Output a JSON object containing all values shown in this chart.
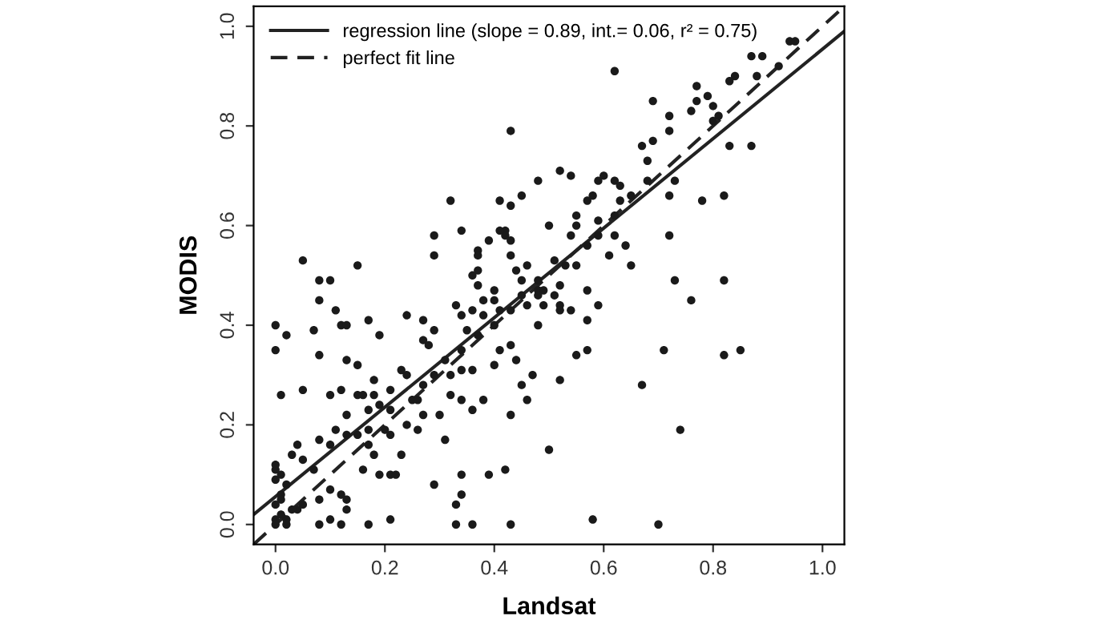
{
  "chart_data": {
    "type": "scatter",
    "xlabel": "Landsat",
    "ylabel": "MODIS",
    "xlim": [
      -0.04,
      1.04
    ],
    "ylim": [
      -0.04,
      1.04
    ],
    "xticks": [
      {
        "value": 0,
        "label": "0.0"
      },
      {
        "value": 0.2,
        "label": "0.2"
      },
      {
        "value": 0.4,
        "label": "0.4"
      },
      {
        "value": 0.6,
        "label": "0.6"
      },
      {
        "value": 0.8,
        "label": "0.8"
      },
      {
        "value": 1,
        "label": "1.0"
      }
    ],
    "yticks": [
      {
        "value": 0,
        "label": "0.0"
      },
      {
        "value": 0.2,
        "label": "0.2"
      },
      {
        "value": 0.4,
        "label": "0.4"
      },
      {
        "value": 0.6,
        "label": "0.6"
      },
      {
        "value": 0.8,
        "label": "0.8"
      },
      {
        "value": 1,
        "label": "1.0"
      }
    ],
    "grid": false,
    "legend": "top left",
    "series": [
      {
        "color": "#1a1a1a",
        "marker": "circle",
        "x": [
          0.94,
          0.95,
          0.87,
          0.89,
          0.92,
          0.84,
          0.88,
          0.83,
          0.77,
          0.77,
          0.79,
          0.8,
          0.81,
          0.76,
          0.8,
          0.83,
          0.87,
          0.72,
          0.72,
          0.69,
          0.67,
          0.62,
          0.69,
          0.62,
          0.6,
          0.52,
          0.68,
          0.68,
          0.73,
          0.72,
          0.82,
          0.78,
          0.82,
          0.72,
          0.65,
          0.57,
          0.59,
          0.58,
          0.57,
          0.55,
          0.63,
          0.62,
          0.65,
          0.63,
          0.54,
          0.59,
          0.62,
          0.61,
          0.64,
          0.59,
          0.55,
          0.55,
          0.54,
          0.51,
          0.51,
          0.52,
          0.57,
          0.59,
          0.5,
          0.53,
          0.49,
          0.48,
          0.41,
          0.43,
          0.42,
          0.42,
          0.43,
          0.39,
          0.43,
          0.44,
          0.46,
          0.45,
          0.4,
          0.37,
          0.37,
          0.38,
          0.43,
          0.48,
          0.45,
          0.32,
          0.29,
          0.34,
          0.41,
          0.29,
          0.05,
          0.15,
          0.08,
          0.1,
          0.37,
          0.37,
          0.36,
          0.08,
          0.11,
          0.0,
          0.02,
          0.0,
          0.07,
          0.12,
          0.13,
          0.17,
          0.19,
          0.24,
          0.08,
          0.13,
          0.15,
          0.05,
          0.01,
          0.1,
          0.12,
          0.15,
          0.16,
          0.18,
          0.18,
          0.19,
          0.21,
          0.23,
          0.24,
          0.13,
          0.17,
          0.21,
          0.25,
          0.26,
          0.27,
          0.24,
          0.21,
          0.2,
          0.17,
          0.15,
          0.13,
          0.11,
          0.1,
          0.08,
          0.04,
          0.03,
          0.05,
          0.07,
          0.0,
          0.0,
          0.01,
          0.0,
          0.0,
          0.02,
          0.04,
          0.05,
          0.08,
          0.1,
          0.12,
          0.13,
          0.13,
          0.1,
          0.08,
          0.12,
          0.17,
          0.21,
          0.16,
          0.19,
          0.21,
          0.22,
          0.23,
          0.17,
          0.18,
          0.26,
          0.29,
          0.31,
          0.27,
          0.29,
          0.31,
          0.32,
          0.34,
          0.34,
          0.36,
          0.38,
          0.36,
          0.34,
          0.32,
          0.3,
          0.27,
          0.29,
          0.27,
          0.28,
          0.33,
          0.34,
          0.36,
          0.38,
          0.4,
          0.35,
          0.37,
          0.4,
          0.41,
          0.43,
          0.45,
          0.46,
          0.43,
          0.41,
          0.4,
          0.44,
          0.45,
          0.46,
          0.43,
          0.47,
          0.48,
          0.48,
          0.34,
          0.34,
          0.33,
          0.33,
          0.36,
          0.39,
          0.42,
          0.43,
          0.5,
          0.73,
          0.76,
          0.71,
          0.82,
          0.85,
          0.67,
          0.74,
          0.58,
          0.7,
          0.52,
          0.55,
          0.57,
          0.57,
          0.54,
          0.52,
          0.52,
          0.49,
          0.48,
          0.01,
          0.02,
          0.0,
          0.01,
          0.03,
          0.02,
          0.0,
          0.01
        ],
        "values": [
          0.97,
          0.97,
          0.94,
          0.94,
          0.92,
          0.9,
          0.9,
          0.89,
          0.88,
          0.85,
          0.86,
          0.84,
          0.82,
          0.83,
          0.81,
          0.76,
          0.76,
          0.82,
          0.79,
          0.77,
          0.76,
          0.91,
          0.85,
          0.69,
          0.7,
          0.71,
          0.73,
          0.69,
          0.69,
          0.66,
          0.66,
          0.65,
          0.49,
          0.58,
          0.52,
          0.56,
          0.61,
          0.66,
          0.65,
          0.62,
          0.65,
          0.62,
          0.66,
          0.68,
          0.7,
          0.69,
          0.58,
          0.54,
          0.56,
          0.58,
          0.6,
          0.52,
          0.58,
          0.53,
          0.46,
          0.48,
          0.47,
          0.44,
          0.6,
          0.52,
          0.44,
          0.49,
          0.65,
          0.64,
          0.59,
          0.58,
          0.57,
          0.57,
          0.54,
          0.51,
          0.52,
          0.46,
          0.47,
          0.48,
          0.55,
          0.45,
          0.79,
          0.69,
          0.66,
          0.65,
          0.58,
          0.59,
          0.59,
          0.54,
          0.53,
          0.52,
          0.49,
          0.49,
          0.54,
          0.51,
          0.5,
          0.45,
          0.43,
          0.4,
          0.38,
          0.35,
          0.39,
          0.4,
          0.4,
          0.41,
          0.38,
          0.42,
          0.34,
          0.33,
          0.32,
          0.27,
          0.26,
          0.26,
          0.27,
          0.26,
          0.26,
          0.29,
          0.26,
          0.24,
          0.27,
          0.31,
          0.3,
          0.22,
          0.23,
          0.23,
          0.25,
          0.25,
          0.22,
          0.2,
          0.18,
          0.19,
          0.19,
          0.18,
          0.18,
          0.19,
          0.16,
          0.17,
          0.16,
          0.14,
          0.13,
          0.11,
          0.11,
          0.09,
          0.06,
          0.04,
          0.01,
          0.01,
          0.03,
          0.04,
          0.05,
          0.07,
          0.06,
          0.05,
          0.03,
          0.01,
          0.0,
          0.0,
          0.0,
          0.01,
          0.11,
          0.1,
          0.1,
          0.1,
          0.14,
          0.16,
          0.14,
          0.19,
          0.08,
          0.17,
          0.28,
          0.3,
          0.33,
          0.3,
          0.31,
          0.35,
          0.31,
          0.25,
          0.23,
          0.25,
          0.26,
          0.22,
          0.41,
          0.39,
          0.37,
          0.36,
          0.44,
          0.42,
          0.43,
          0.42,
          0.4,
          0.39,
          0.38,
          0.45,
          0.43,
          0.43,
          0.49,
          0.44,
          0.36,
          0.35,
          0.32,
          0.33,
          0.28,
          0.25,
          0.22,
          0.3,
          0.4,
          0.47,
          0.1,
          0.06,
          0.04,
          0.0,
          0.0,
          0.1,
          0.11,
          0.0,
          0.15,
          0.49,
          0.45,
          0.35,
          0.34,
          0.35,
          0.28,
          0.19,
          0.01,
          0.0,
          0.29,
          0.34,
          0.35,
          0.41,
          0.43,
          0.44,
          0.43,
          0.47,
          0.46,
          0.02,
          0.0,
          0.0,
          0.05,
          0.03,
          0.08,
          0.12,
          0.1
        ]
      },
      {
        "type": "line",
        "name": "regression line (slope = 0.89, int.= 0.06, r² = 0.75)",
        "color": "#222222",
        "line_style": "solid",
        "x": [
          -0.04,
          1.04
        ],
        "values": [
          0.02,
          0.99
        ]
      },
      {
        "type": "line",
        "name": "perfect fit line",
        "color": "#222222",
        "line_style": "dashed",
        "x": [
          -0.04,
          1.04
        ],
        "values": [
          -0.04,
          1.04
        ]
      }
    ]
  }
}
